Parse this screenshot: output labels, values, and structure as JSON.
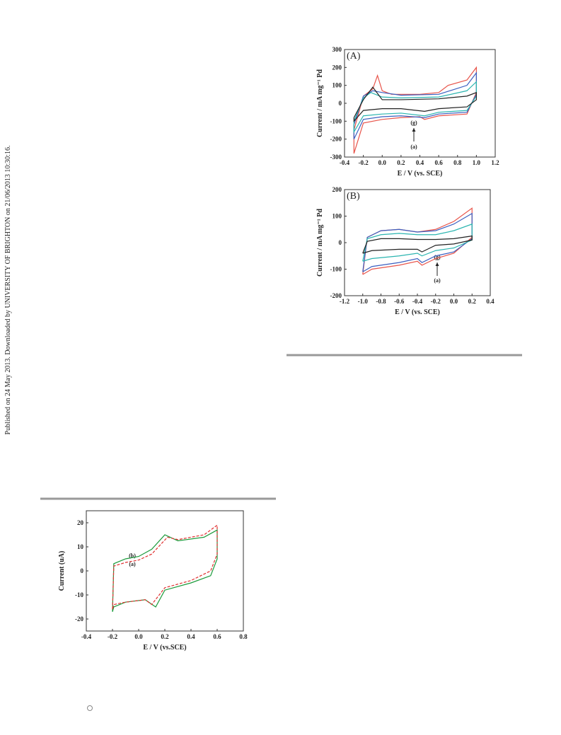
{
  "side_note": "Published on 24 May 2013. Downloaded by UNIVERSITY OF BRIGHTON on 21/06/2013 10:30:16.",
  "chart_data": [
    {
      "type": "line",
      "panel": "(A)",
      "xlabel": "E / V (vs. SCE)",
      "ylabel": "Current / mA mg⁻¹ Pd",
      "xlim": [
        -0.4,
        1.2
      ],
      "xticks": [
        -0.4,
        -0.2,
        {
          "value": 0,
          "label": "0.0"
        },
        0.2,
        0.4,
        0.6,
        0.8,
        {
          "value": 1,
          "label": "1.0"
        },
        1.2
      ],
      "ylim": [
        -300,
        300
      ],
      "yticks": [
        -300,
        -200,
        -100,
        0,
        100,
        200,
        300
      ],
      "annotations": [
        "(g)",
        "(a)"
      ],
      "series": [
        {
          "color": "#e8544a",
          "x": [
            -0.3,
            -0.2,
            -0.1,
            -0.05,
            0.0,
            0.1,
            0.4,
            0.6,
            0.7,
            0.9,
            1.0,
            1.0,
            0.9,
            0.6,
            0.45,
            0.4,
            0.2,
            0.0,
            -0.2,
            -0.3,
            -0.3
          ],
          "values": [
            -150,
            40,
            80,
            155,
            70,
            50,
            50,
            60,
            100,
            130,
            200,
            60,
            -60,
            -70,
            -90,
            -75,
            -80,
            -90,
            -110,
            -280,
            -150
          ]
        },
        {
          "color": "#3b5fc0",
          "x": [
            -0.3,
            -0.2,
            -0.1,
            0.0,
            0.2,
            0.6,
            0.9,
            1.0,
            1.0,
            0.9,
            0.6,
            0.45,
            0.2,
            0.0,
            -0.2,
            -0.3,
            -0.3
          ],
          "values": [
            -120,
            40,
            70,
            60,
            45,
            50,
            100,
            170,
            50,
            -50,
            -60,
            -80,
            -70,
            -75,
            -90,
            -200,
            -120
          ]
        },
        {
          "color": "#2bb5b0",
          "x": [
            -0.3,
            -0.2,
            -0.12,
            0.0,
            0.2,
            0.6,
            0.9,
            1.0,
            1.0,
            0.9,
            0.6,
            0.45,
            0.2,
            0.0,
            -0.2,
            -0.3,
            -0.3
          ],
          "values": [
            -100,
            30,
            60,
            35,
            30,
            35,
            70,
            120,
            40,
            -40,
            -50,
            -70,
            -55,
            -60,
            -70,
            -160,
            -100
          ]
        },
        {
          "color": "#222222",
          "x": [
            -0.3,
            -0.2,
            -0.1,
            0.0,
            0.2,
            0.6,
            0.9,
            1.0,
            1.0,
            0.9,
            0.6,
            0.45,
            0.2,
            0.0,
            -0.2,
            -0.3,
            -0.3
          ],
          "values": [
            -80,
            20,
            90,
            20,
            20,
            25,
            40,
            60,
            20,
            -20,
            -30,
            -45,
            -30,
            -30,
            -40,
            -100,
            -80
          ]
        }
      ]
    },
    {
      "type": "line",
      "panel": "(B)",
      "xlabel": "E / V (vs. SCE)",
      "ylabel": "Current / mA mg⁻¹ Pd",
      "xlim": [
        -1.2,
        0.4
      ],
      "xticks": [
        -1.2,
        {
          "value": -1,
          "label": "-1.0"
        },
        -0.8,
        -0.6,
        -0.4,
        -0.2,
        {
          "value": 0,
          "label": "0.0"
        },
        0.2,
        0.4
      ],
      "ylim": [
        -200,
        200
      ],
      "yticks": [
        -200,
        -100,
        0,
        100,
        200
      ],
      "annotations": [
        "(g)",
        "(a)"
      ],
      "series": [
        {
          "color": "#e8544a",
          "x": [
            -1.0,
            -0.95,
            -0.8,
            -0.6,
            -0.4,
            -0.2,
            0.0,
            0.2,
            0.2,
            0.0,
            -0.2,
            -0.35,
            -0.4,
            -0.6,
            -0.9,
            -1.0
          ],
          "values": [
            -120,
            20,
            45,
            50,
            40,
            50,
            80,
            130,
            20,
            -40,
            -60,
            -85,
            -70,
            -85,
            -100,
            -120
          ]
        },
        {
          "color": "#3b5fc0",
          "x": [
            -1.0,
            -0.95,
            -0.8,
            -0.6,
            -0.4,
            -0.2,
            0.0,
            0.2,
            0.2,
            0.0,
            -0.2,
            -0.35,
            -0.4,
            -0.6,
            -0.9,
            -1.0
          ],
          "values": [
            -110,
            20,
            45,
            50,
            40,
            45,
            70,
            110,
            15,
            -35,
            -50,
            -75,
            -60,
            -75,
            -90,
            -110
          ]
        },
        {
          "color": "#2bb5b0",
          "x": [
            -1.0,
            -0.95,
            -0.8,
            -0.6,
            -0.4,
            -0.2,
            0.0,
            0.2,
            0.2,
            0.0,
            -0.2,
            -0.35,
            -0.4,
            -0.6,
            -0.9,
            -1.0
          ],
          "values": [
            -70,
            15,
            30,
            35,
            30,
            30,
            45,
            70,
            10,
            -20,
            -30,
            -50,
            -40,
            -50,
            -60,
            -70
          ]
        },
        {
          "color": "#222222",
          "x": [
            -1.0,
            -0.95,
            -0.8,
            -0.6,
            -0.4,
            -0.2,
            0.0,
            0.2,
            0.2,
            0.0,
            -0.2,
            -0.35,
            -0.4,
            -0.6,
            -0.9,
            -1.0
          ],
          "values": [
            -40,
            5,
            15,
            15,
            12,
            12,
            15,
            25,
            10,
            -5,
            -10,
            -35,
            -25,
            -25,
            -30,
            -40
          ]
        }
      ]
    },
    {
      "type": "line",
      "xlabel": "E / V (vs.SCE)",
      "ylabel": "Current (uA)",
      "xlim": [
        -0.4,
        0.8
      ],
      "xticks": [
        -0.4,
        -0.2,
        {
          "value": 0,
          "label": "0.0"
        },
        0.2,
        0.4,
        0.6,
        0.8
      ],
      "ylim": [
        -25,
        25
      ],
      "yticks": [
        -20,
        -10,
        0,
        10,
        20
      ],
      "annotations": [
        "(b)",
        "(a)"
      ],
      "series": [
        {
          "color": "#1a9a3a",
          "linestyle": "solid",
          "x": [
            -0.2,
            -0.19,
            -0.1,
            0.0,
            0.1,
            0.2,
            0.3,
            0.5,
            0.6,
            0.6,
            0.55,
            0.4,
            0.2,
            0.13,
            0.05,
            -0.1,
            -0.19,
            -0.2
          ],
          "values": [
            -17,
            3,
            5,
            6,
            9,
            15,
            12.5,
            14,
            17,
            5,
            -2,
            -5,
            -8,
            -15,
            -12,
            -13,
            -15,
            -17
          ]
        },
        {
          "color": "#e03030",
          "linestyle": "dashed",
          "x": [
            -0.2,
            -0.19,
            -0.1,
            0.0,
            0.1,
            0.22,
            0.3,
            0.5,
            0.6,
            0.6,
            0.55,
            0.4,
            0.2,
            0.1,
            0.05,
            -0.1,
            -0.19,
            -0.2
          ],
          "values": [
            -16,
            2,
            3.5,
            4.5,
            7,
            14,
            13,
            15,
            19,
            7,
            0,
            -4,
            -7,
            -14,
            -12,
            -13,
            -14,
            -16
          ]
        }
      ]
    }
  ]
}
